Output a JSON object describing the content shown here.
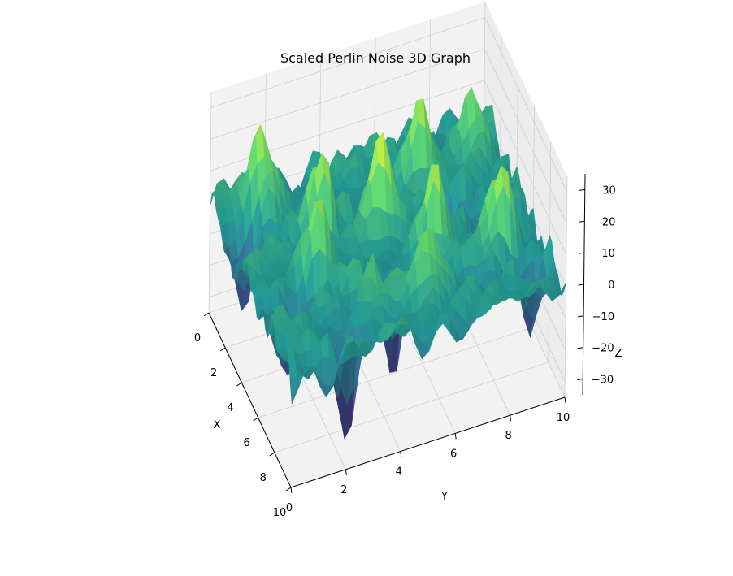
{
  "chart_data": {
    "type": "surface3d",
    "title": "Scaled Perlin Noise 3D Graph",
    "xlabel": "X",
    "ylabel": "Y",
    "zlabel": "Z",
    "xlim": [
      0,
      10
    ],
    "ylim": [
      0,
      10
    ],
    "zlim": [
      -35,
      35
    ],
    "x_ticks": [
      "0",
      "2",
      "4",
      "6",
      "8",
      "10"
    ],
    "y_ticks": [
      "0",
      "2",
      "4",
      "6",
      "8",
      "10"
    ],
    "z_ticks": [
      "−30",
      "−20",
      "−10",
      "0",
      "10",
      "20",
      "30"
    ],
    "grid": true,
    "colormap": "viridis",
    "colormap_stops": [
      "#440154",
      "#3b528b",
      "#21918c",
      "#5ec962",
      "#fde725"
    ],
    "pane_color": "#f2f2f2",
    "grid_color": "#cfcfcf",
    "grid_resolution": 40,
    "peaks": [
      {
        "x": 1.2,
        "y": 1.5,
        "z": 28
      },
      {
        "x": 2.5,
        "y": 6.8,
        "z": 26
      },
      {
        "x": 4.2,
        "y": 4.8,
        "z": 27
      },
      {
        "x": 6.0,
        "y": 6.3,
        "z": 25
      },
      {
        "x": 3.5,
        "y": 3.0,
        "z": 22
      },
      {
        "x": 7.0,
        "y": 8.4,
        "z": 24
      },
      {
        "x": 5.2,
        "y": 2.3,
        "z": 20
      },
      {
        "x": 8.0,
        "y": 5.5,
        "z": 18
      },
      {
        "x": 2.0,
        "y": 9.0,
        "z": 20
      },
      {
        "x": 7.6,
        "y": 3.6,
        "z": 15
      }
    ],
    "valleys": [
      {
        "x": 8.8,
        "y": 2.3,
        "z": -32
      },
      {
        "x": 6.8,
        "y": 4.6,
        "z": -25
      },
      {
        "x": 8.2,
        "y": 9.3,
        "z": -22
      },
      {
        "x": 2.2,
        "y": 0.5,
        "z": -20
      },
      {
        "x": 5.5,
        "y": 8.5,
        "z": -24
      },
      {
        "x": 6.3,
        "y": 1.2,
        "z": -22
      },
      {
        "x": 4.0,
        "y": 7.5,
        "z": -15
      }
    ]
  }
}
